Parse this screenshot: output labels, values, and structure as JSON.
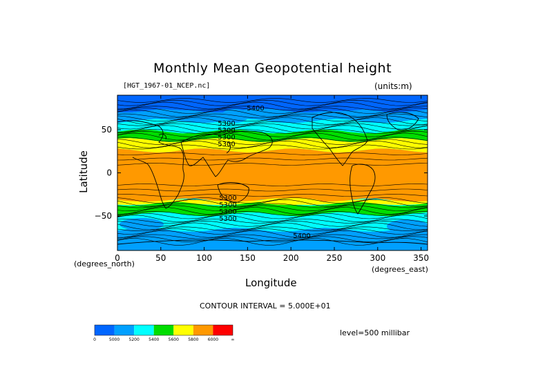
{
  "chart_data": {
    "type": "heatmap",
    "title": "Monthly Mean Geopotential height",
    "file_label": "[HGT_1967-01_NCEP.nc]",
    "units_label": "(units:m)",
    "xlabel": "Longitude",
    "ylabel": "Latitude",
    "x_units": "(degrees_east)",
    "y_units": "(degrees_north)",
    "xlim": [
      0,
      357.5
    ],
    "ylim": [
      -90,
      90
    ],
    "x_ticks": [
      0,
      50,
      100,
      150,
      200,
      250,
      300,
      350
    ],
    "y_ticks": [
      50,
      0,
      -50
    ],
    "y_tick_labels": [
      "50",
      "0",
      "−50"
    ],
    "contour_interval_label": "CONTOUR INTERVAL = 5.000E+01",
    "level_label": "level=500 millibar",
    "contour_labels": [
      "5300",
      "5300",
      "5300",
      "5300",
      "5300",
      "5300",
      "5300",
      "5300",
      "5400",
      "5400"
    ],
    "colorbar": {
      "boundaries": [
        "0",
        "5000",
        "5200",
        "5400",
        "5600",
        "5800",
        "6000",
        "∞"
      ],
      "colors": [
        "#0066ff",
        "#00a0ff",
        "#00ffff",
        "#00dd00",
        "#ffff00",
        "#ff9900",
        "#ff0000"
      ]
    },
    "bands": [
      {
        "lat_from": 90,
        "lat_to": 72,
        "value_range": "< 5000",
        "color": "#0066ff"
      },
      {
        "lat_from": 72,
        "lat_to": 60,
        "value_range": "5000-5200",
        "color": "#00a0ff"
      },
      {
        "lat_from": 60,
        "lat_to": 48,
        "value_range": "5200-5400",
        "color": "#00ffff"
      },
      {
        "lat_from": 48,
        "lat_to": 38,
        "value_range": "5400-5600",
        "color": "#00dd00"
      },
      {
        "lat_from": 38,
        "lat_to": 26,
        "value_range": "5600-5800",
        "color": "#ffff00"
      },
      {
        "lat_from": 26,
        "lat_to": -32,
        "value_range": "5800-6000",
        "color": "#ff9900"
      },
      {
        "lat_from": -32,
        "lat_to": -36,
        "value_range": "5600-5800",
        "color": "#ffff00"
      },
      {
        "lat_from": -36,
        "lat_to": -48,
        "value_range": "5400-5600",
        "color": "#00dd00"
      },
      {
        "lat_from": -48,
        "lat_to": -66,
        "value_range": "5200-5400",
        "color": "#00ffff"
      },
      {
        "lat_from": -66,
        "lat_to": -78,
        "value_range": "5000-5200",
        "color": "#00a0ff"
      },
      {
        "lat_from": -78,
        "lat_to": -90,
        "value_range": "5000-5200",
        "color": "#00a0ff"
      }
    ],
    "grid": false
  }
}
